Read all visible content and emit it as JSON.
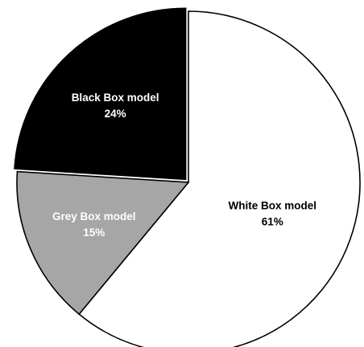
{
  "chart_data": {
    "type": "pie",
    "title": "",
    "slices": [
      {
        "label": "White Box model",
        "percent_label": "61%",
        "value": 61,
        "color": "#ffffff",
        "text_color": "#000000"
      },
      {
        "label": "Grey Box model",
        "percent_label": "15%",
        "value": 15,
        "color": "#a6a6a6",
        "text_color": "#ffffff"
      },
      {
        "label": "Black Box model",
        "percent_label": "24%",
        "value": 24,
        "color": "#000000",
        "text_color": "#ffffff"
      }
    ],
    "start_angle": "12 o'clock",
    "direction": "clockwise",
    "exploded_slice": "Black Box model",
    "legend": "none"
  }
}
